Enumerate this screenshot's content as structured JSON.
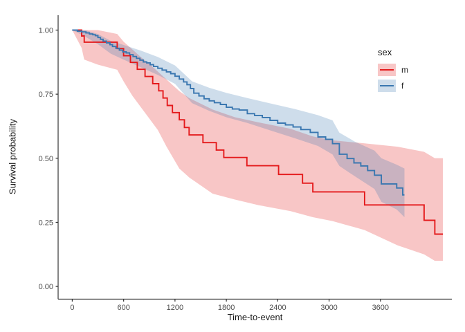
{
  "chart_data": {
    "type": "line",
    "subtype": "kaplan-meier-step-with-confidence-bands",
    "title": "",
    "xlabel": "Time-to-event",
    "ylabel": "Survival probability",
    "xlim": [
      -165,
      4434
    ],
    "ylim": [
      -0.0496,
      1.058
    ],
    "x_ticks": [
      0,
      600,
      1200,
      1800,
      2400,
      3000,
      3600
    ],
    "y_tick_values": [
      0,
      0.25,
      0.5,
      0.75,
      1.0
    ],
    "y_tick_labels": [
      "0.00",
      "0.25",
      "0.50",
      "0.75",
      "1.00"
    ],
    "grid": "off",
    "legend_title": "sex",
    "legend_position": "inside-top-right",
    "axis_color": "#333333",
    "tick_label_color": "#4d4d4d",
    "series": [
      {
        "name": "m",
        "color": "#e41a1c",
        "band_opacity": 0.25,
        "steps": [
          [
            0,
            1.0
          ],
          [
            110,
            0.977
          ],
          [
            140,
            0.953
          ],
          [
            525,
            0.928
          ],
          [
            600,
            0.9
          ],
          [
            680,
            0.874
          ],
          [
            760,
            0.847
          ],
          [
            850,
            0.819
          ],
          [
            940,
            0.791
          ],
          [
            1010,
            0.763
          ],
          [
            1060,
            0.735
          ],
          [
            1110,
            0.706
          ],
          [
            1170,
            0.678
          ],
          [
            1250,
            0.65
          ],
          [
            1310,
            0.62
          ],
          [
            1365,
            0.591
          ],
          [
            1527,
            0.561
          ],
          [
            1683,
            0.532
          ],
          [
            1770,
            0.503
          ],
          [
            2040,
            0.471
          ],
          [
            2410,
            0.437
          ],
          [
            2690,
            0.403
          ],
          [
            2810,
            0.369
          ],
          [
            3415,
            0.318
          ],
          [
            4110,
            0.258
          ],
          [
            4235,
            0.204
          ],
          [
            4330,
            0.204
          ]
        ],
        "ci": [
          [
            0,
            1.0,
            1.0
          ],
          [
            110,
            0.93,
            1.0
          ],
          [
            140,
            0.885,
            1.0
          ],
          [
            300,
            0.865,
            1.0
          ],
          [
            525,
            0.845,
            0.985
          ],
          [
            600,
            0.8,
            0.955
          ],
          [
            700,
            0.745,
            0.925
          ],
          [
            800,
            0.7,
            0.895
          ],
          [
            900,
            0.655,
            0.868
          ],
          [
            1000,
            0.61,
            0.838
          ],
          [
            1100,
            0.546,
            0.808
          ],
          [
            1250,
            0.46,
            0.762
          ],
          [
            1367,
            0.425,
            0.735
          ],
          [
            1640,
            0.362,
            0.69
          ],
          [
            1900,
            0.339,
            0.66
          ],
          [
            2175,
            0.317,
            0.64
          ],
          [
            2550,
            0.294,
            0.615
          ],
          [
            2810,
            0.27,
            0.585
          ],
          [
            3040,
            0.255,
            0.57
          ],
          [
            3415,
            0.22,
            0.558
          ],
          [
            3800,
            0.16,
            0.545
          ],
          [
            4110,
            0.125,
            0.525
          ],
          [
            4235,
            0.1,
            0.5
          ],
          [
            4330,
            0.1,
            0.5
          ]
        ]
      },
      {
        "name": "f",
        "color": "#3a77b0",
        "band_opacity": 0.25,
        "steps": [
          [
            0,
            1.0
          ],
          [
            60,
            0.996
          ],
          [
            110,
            0.993
          ],
          [
            160,
            0.989
          ],
          [
            200,
            0.985
          ],
          [
            240,
            0.982
          ],
          [
            270,
            0.978
          ],
          [
            300,
            0.971
          ],
          [
            330,
            0.964
          ],
          [
            360,
            0.957
          ],
          [
            400,
            0.95
          ],
          [
            440,
            0.943
          ],
          [
            470,
            0.936
          ],
          [
            510,
            0.929
          ],
          [
            550,
            0.922
          ],
          [
            590,
            0.915
          ],
          [
            630,
            0.911
          ],
          [
            670,
            0.904
          ],
          [
            710,
            0.897
          ],
          [
            750,
            0.89
          ],
          [
            790,
            0.883
          ],
          [
            830,
            0.876
          ],
          [
            870,
            0.872
          ],
          [
            910,
            0.865
          ],
          [
            950,
            0.858
          ],
          [
            1000,
            0.851
          ],
          [
            1050,
            0.844
          ],
          [
            1100,
            0.837
          ],
          [
            1150,
            0.83
          ],
          [
            1200,
            0.82
          ],
          [
            1250,
            0.809
          ],
          [
            1300,
            0.798
          ],
          [
            1340,
            0.787
          ],
          [
            1380,
            0.772
          ],
          [
            1420,
            0.754
          ],
          [
            1480,
            0.743
          ],
          [
            1540,
            0.732
          ],
          [
            1600,
            0.724
          ],
          [
            1660,
            0.717
          ],
          [
            1730,
            0.71
          ],
          [
            1800,
            0.699
          ],
          [
            1870,
            0.692
          ],
          [
            1950,
            0.688
          ],
          [
            2045,
            0.674
          ],
          [
            2130,
            0.667
          ],
          [
            2220,
            0.659
          ],
          [
            2310,
            0.648
          ],
          [
            2400,
            0.637
          ],
          [
            2490,
            0.63
          ],
          [
            2580,
            0.622
          ],
          [
            2670,
            0.612
          ],
          [
            2780,
            0.601
          ],
          [
            2870,
            0.583
          ],
          [
            2960,
            0.574
          ],
          [
            3040,
            0.557
          ],
          [
            3120,
            0.516
          ],
          [
            3210,
            0.499
          ],
          [
            3290,
            0.482
          ],
          [
            3370,
            0.47
          ],
          [
            3450,
            0.452
          ],
          [
            3530,
            0.434
          ],
          [
            3610,
            0.4
          ],
          [
            3790,
            0.384
          ],
          [
            3860,
            0.357
          ],
          [
            3880,
            0.357
          ]
        ],
        "ci": [
          [
            0,
            1.0,
            1.0
          ],
          [
            150,
            0.975,
            1.0
          ],
          [
            300,
            0.945,
            0.985
          ],
          [
            450,
            0.908,
            0.958
          ],
          [
            600,
            0.885,
            0.942
          ],
          [
            800,
            0.855,
            0.92
          ],
          [
            1000,
            0.825,
            0.895
          ],
          [
            1200,
            0.79,
            0.862
          ],
          [
            1400,
            0.715,
            0.8
          ],
          [
            1600,
            0.685,
            0.775
          ],
          [
            1800,
            0.66,
            0.755
          ],
          [
            2045,
            0.638,
            0.735
          ],
          [
            2300,
            0.61,
            0.715
          ],
          [
            2600,
            0.578,
            0.692
          ],
          [
            2870,
            0.548,
            0.668
          ],
          [
            3040,
            0.515,
            0.648
          ],
          [
            3120,
            0.47,
            0.6
          ],
          [
            3300,
            0.43,
            0.565
          ],
          [
            3530,
            0.38,
            0.53
          ],
          [
            3610,
            0.33,
            0.5
          ],
          [
            3790,
            0.3,
            0.475
          ],
          [
            3880,
            0.27,
            0.46
          ]
        ]
      }
    ]
  }
}
